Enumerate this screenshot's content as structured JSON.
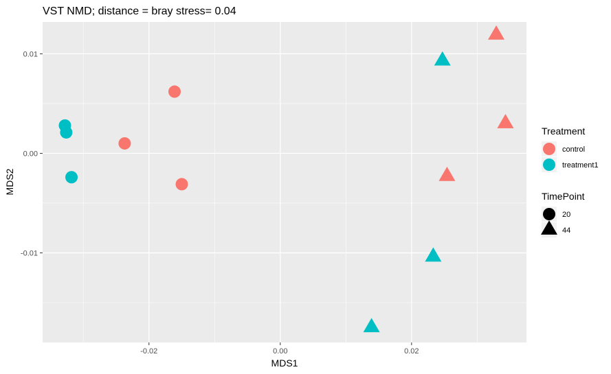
{
  "chart_data": {
    "type": "scatter",
    "title": "VST NMD; distance =  bray stress= 0.04",
    "xlabel": "MDS1",
    "ylabel": "MDS2",
    "xlim": [
      -0.0362,
      0.0375
    ],
    "ylim": [
      -0.019,
      0.0132
    ],
    "x_ticks": [
      -0.02,
      0.0,
      0.02
    ],
    "x_tick_labels": [
      "-0.02",
      "0.00",
      "0.02"
    ],
    "y_ticks": [
      -0.01,
      0.0,
      0.01
    ],
    "y_tick_labels": [
      "-0.01",
      "0.00",
      "0.01"
    ],
    "grid": true,
    "legend_position": "right",
    "legends": [
      {
        "title": "Treatment",
        "kind": "color",
        "entries": [
          {
            "label": "control",
            "color": "#F8766D"
          },
          {
            "label": "treatment1",
            "color": "#00BFC4"
          }
        ]
      },
      {
        "title": "TimePoint",
        "kind": "shape",
        "entries": [
          {
            "label": "20",
            "shape": "circle"
          },
          {
            "label": "44",
            "shape": "triangle"
          }
        ]
      }
    ],
    "series": [
      {
        "treatment": "control",
        "color": "#F8766D",
        "points": [
          {
            "x": -0.0161,
            "y": 0.0062,
            "timepoint": "20"
          },
          {
            "x": -0.0237,
            "y": 0.001,
            "timepoint": "20"
          },
          {
            "x": -0.015,
            "y": -0.0031,
            "timepoint": "20"
          },
          {
            "x": 0.0329,
            "y": 0.0119,
            "timepoint": "44"
          },
          {
            "x": 0.0343,
            "y": 0.003,
            "timepoint": "44"
          },
          {
            "x": 0.0254,
            "y": -0.0023,
            "timepoint": "44"
          }
        ]
      },
      {
        "treatment": "treatment1",
        "color": "#00BFC4",
        "points": [
          {
            "x": -0.0328,
            "y": 0.0028,
            "timepoint": "20"
          },
          {
            "x": -0.0326,
            "y": 0.0021,
            "timepoint": "20"
          },
          {
            "x": -0.0318,
            "y": -0.0024,
            "timepoint": "20"
          },
          {
            "x": 0.0247,
            "y": 0.0093,
            "timepoint": "44"
          },
          {
            "x": 0.0233,
            "y": -0.0104,
            "timepoint": "44"
          },
          {
            "x": 0.0139,
            "y": -0.0175,
            "timepoint": "44"
          }
        ]
      }
    ]
  }
}
